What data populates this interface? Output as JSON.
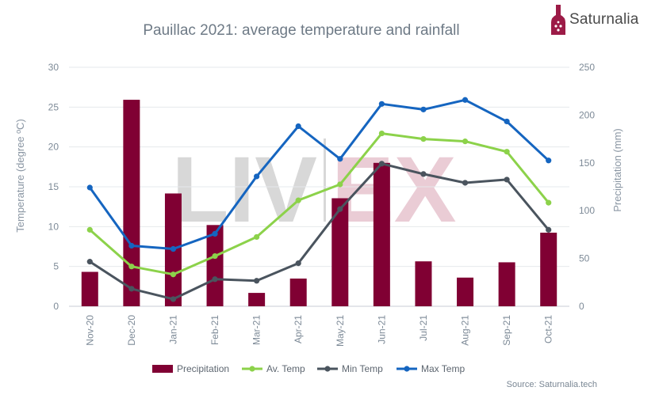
{
  "chart_data": {
    "type": "bar",
    "title": "Pauillac 2021: average temperature and rainfall",
    "categories": [
      "Nov-20",
      "Dec-20",
      "Jan-21",
      "Feb-21",
      "Mar-21",
      "Apr-21",
      "May-21",
      "Jun-21",
      "Jul-21",
      "Aug-21",
      "Sep-21",
      "Oct-21"
    ],
    "ylabel_left": "Temperature (degree ºC)",
    "ylabel_right": "Precipitation (mm)",
    "ylim_left": [
      0,
      30
    ],
    "ylim_right": [
      0,
      250
    ],
    "yticks_left": [
      "0",
      "5",
      "10",
      "15",
      "20",
      "25",
      "30"
    ],
    "yticks_right": [
      "0",
      "50",
      "100",
      "150",
      "200",
      "250"
    ],
    "bar_series": {
      "name": "Precipitation",
      "color": "#800033",
      "values": [
        36,
        216,
        118,
        85,
        14,
        29,
        113,
        150,
        47,
        30,
        46,
        77
      ]
    },
    "line_series": [
      {
        "name": "Av. Temp",
        "color": "#8cd24a",
        "values": [
          9.6,
          5.0,
          4.0,
          6.3,
          8.7,
          13.3,
          15.3,
          21.7,
          21.0,
          20.7,
          19.4,
          13.0
        ]
      },
      {
        "name": "Min Temp",
        "color": "#4a545e",
        "values": [
          5.6,
          2.2,
          0.9,
          3.4,
          3.2,
          5.4,
          12.2,
          17.9,
          16.6,
          15.5,
          15.9,
          9.6
        ]
      },
      {
        "name": "Max Temp",
        "color": "#1565c0",
        "values": [
          14.9,
          7.6,
          7.2,
          9.1,
          16.3,
          22.6,
          18.5,
          25.4,
          24.7,
          25.9,
          23.2,
          18.3
        ]
      }
    ],
    "legend_position": "bottom",
    "grid": "horizontal"
  },
  "brand": {
    "name": "Saturnalia",
    "color": "#9c1b47"
  },
  "watermark": {
    "left": "LIV",
    "right": "EX"
  },
  "source": "Source: Saturnalia.tech"
}
